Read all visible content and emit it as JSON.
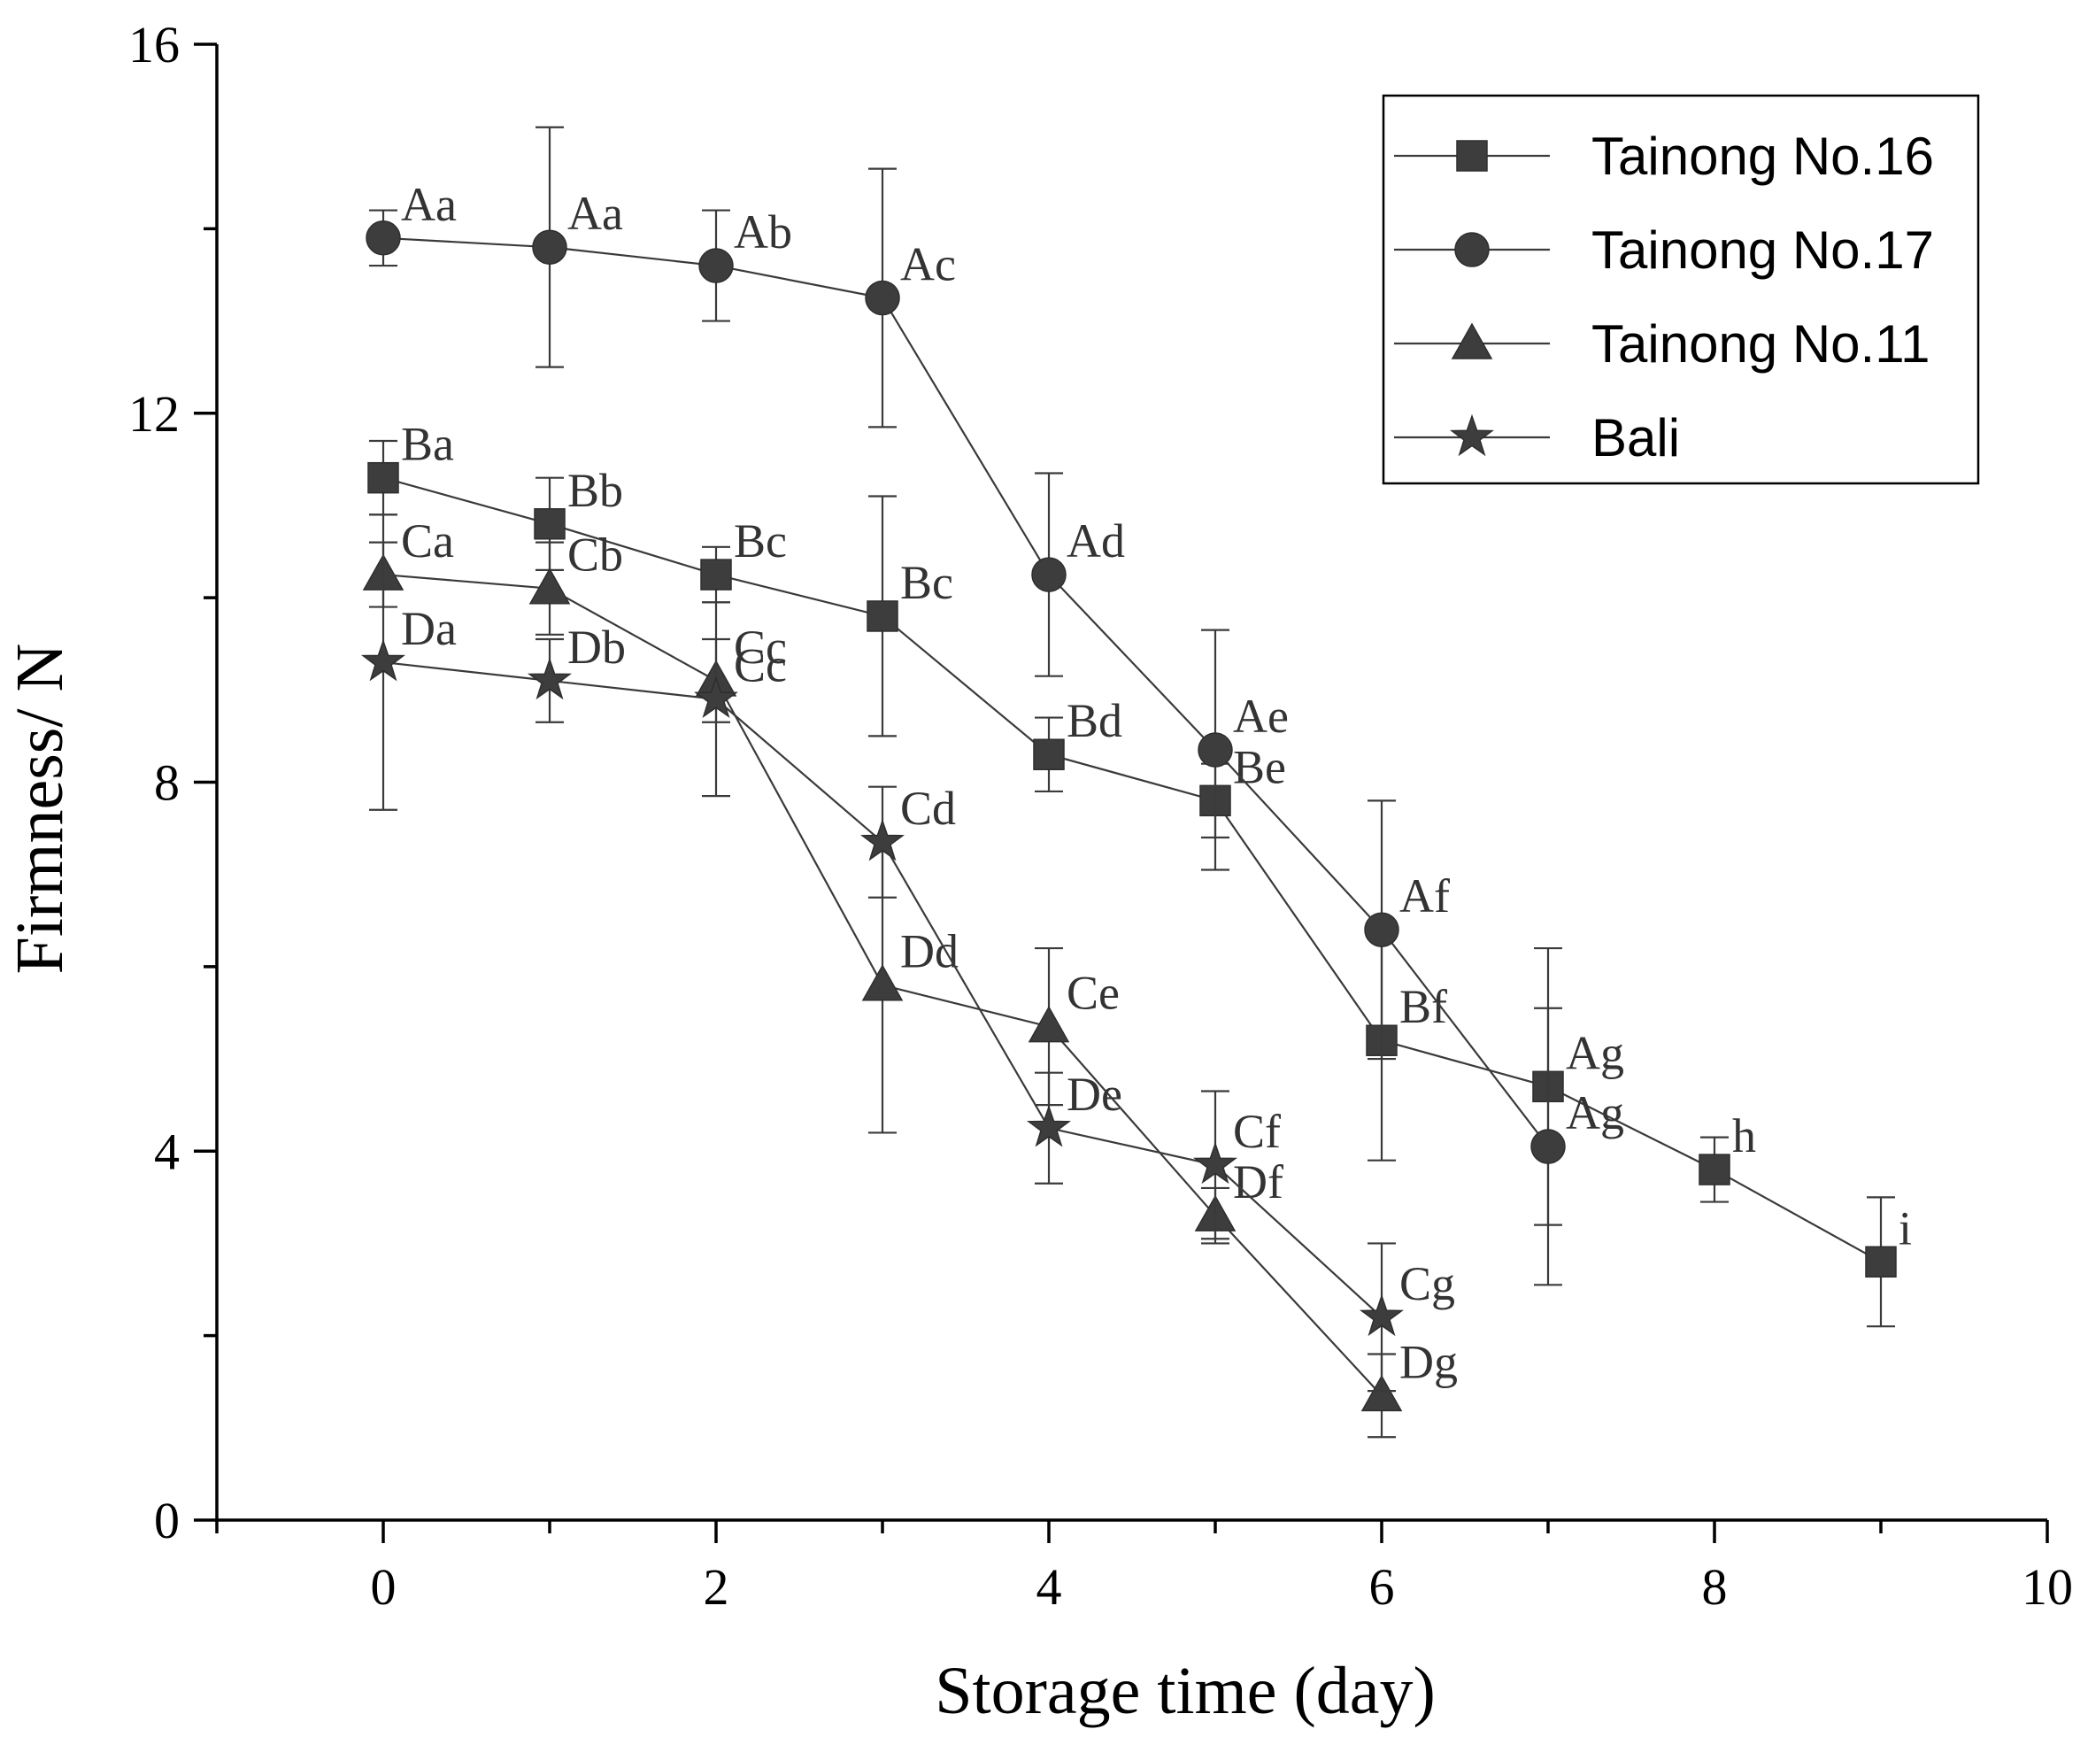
{
  "chart_data": {
    "type": "line",
    "title": "",
    "xlabel": "Storage time (day)",
    "ylabel": "Firmness/ N",
    "xlim": [
      -1,
      10
    ],
    "ylim": [
      0,
      16
    ],
    "xticks": [
      0,
      2,
      4,
      6,
      8,
      10
    ],
    "yticks": [
      0,
      4,
      8,
      12,
      16
    ],
    "grid": false,
    "legend_position": "top-right",
    "series": [
      {
        "name": "Tainong No.16",
        "marker": "square",
        "x": [
          0,
          1,
          2,
          3,
          4,
          5,
          6,
          7,
          8,
          9
        ],
        "y": [
          11.3,
          10.8,
          10.25,
          9.8,
          8.3,
          7.8,
          5.2,
          4.7,
          3.8,
          2.8
        ],
        "err": [
          0.4,
          0.5,
          0.3,
          1.3,
          0.4,
          0.4,
          1.3,
          1.5,
          0.35,
          0.7
        ],
        "labels": [
          "Ba",
          "Bb",
          "Bc",
          "Bc",
          "Bd",
          "Be",
          "Bf",
          "Ag",
          "h",
          "i"
        ]
      },
      {
        "name": "Tainong No.17",
        "marker": "circle",
        "x": [
          0,
          1,
          2,
          3,
          4,
          5,
          6,
          7
        ],
        "y": [
          13.9,
          13.8,
          13.6,
          13.25,
          10.25,
          8.35,
          6.4,
          4.05
        ],
        "err": [
          0.3,
          1.3,
          0.6,
          1.4,
          1.1,
          1.3,
          1.4,
          1.5
        ],
        "labels": [
          "Aa",
          "Aa",
          "Ab",
          "Ac",
          "Ad",
          "Ae",
          "Af",
          "Ag"
        ]
      },
      {
        "name": "Tainong No.11",
        "marker": "triangle",
        "x": [
          0,
          1,
          2,
          3,
          4,
          5,
          6
        ],
        "y": [
          10.25,
          10.1,
          9.1,
          5.8,
          5.35,
          3.3,
          1.35
        ],
        "err": [
          0.35,
          0.5,
          0.45,
          1.6,
          0.85,
          0.3,
          0.45
        ],
        "labels": [
          "Ca",
          "Cb",
          "Cc",
          "Dd",
          "Ce",
          "Df",
          "Dg"
        ]
      },
      {
        "name": "Bali",
        "marker": "star",
        "x": [
          0,
          1,
          2,
          3,
          4,
          5,
          6
        ],
        "y": [
          9.3,
          9.1,
          8.9,
          7.35,
          4.25,
          3.85,
          2.2
        ],
        "err": [
          1.6,
          0.45,
          1.05,
          0.6,
          0.6,
          0.8,
          0.8
        ],
        "labels": [
          "Da",
          "Db",
          "Cc",
          "Cd",
          "De",
          "Cf",
          "Cg"
        ]
      }
    ]
  }
}
